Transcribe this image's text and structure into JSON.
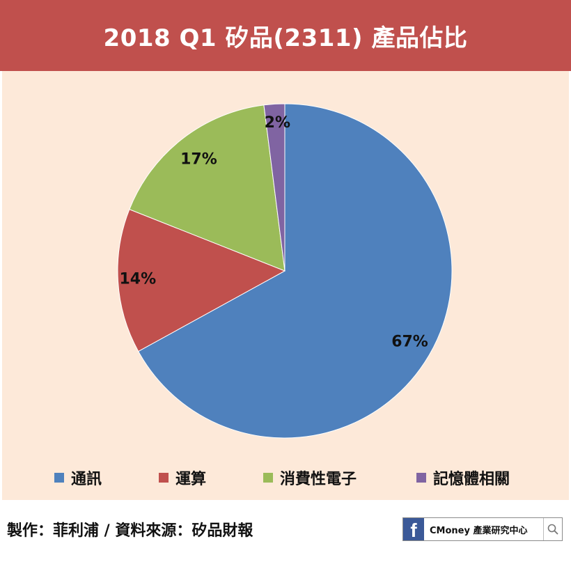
{
  "title": "2018 Q1 矽品(2311) 產品佔比",
  "chart_data": {
    "type": "pie",
    "title": "2018 Q1 矽品(2311) 產品佔比",
    "start_angle_deg": 0,
    "direction": "clockwise",
    "legend_position": "bottom",
    "slices": [
      {
        "label": "通訊",
        "value": 67,
        "value_label": "67%",
        "color": "#4f81bd"
      },
      {
        "label": "運算",
        "value": 14,
        "value_label": "14%",
        "color": "#c0504d"
      },
      {
        "label": "消費性電子",
        "value": 17,
        "value_label": "17%",
        "color": "#9bbb59"
      },
      {
        "label": "記憶體相關",
        "value": 2,
        "value_label": "2%",
        "color": "#8064a2"
      }
    ]
  },
  "footer": {
    "credit": "製作：菲利浦 / 資料來源：矽品財報",
    "badge": {
      "icon": "facebook-icon",
      "logo_letter": "f",
      "text": "CMoney 產業研究中心",
      "search_icon": "search-icon"
    }
  },
  "colors": {
    "title_bar": "#c0504d",
    "panel_background": "#fde9d9"
  }
}
